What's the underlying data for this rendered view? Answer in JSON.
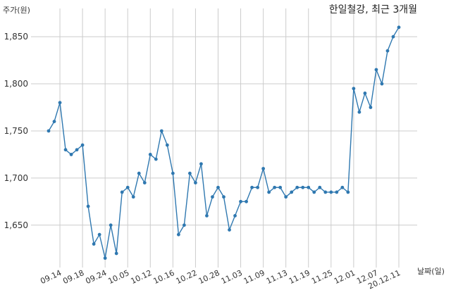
{
  "chart_data": {
    "type": "line",
    "title": "한일철강, 최근 3개월",
    "ylabel": "주가(원)",
    "xlabel": "날짜(일)",
    "ylim": [
      1605,
      1880
    ],
    "yticks": [
      1650,
      1700,
      1750,
      1800,
      1850
    ],
    "ytick_labels": [
      "1,650",
      "1,700",
      "1,750",
      "1,800",
      "1,850"
    ],
    "grid": true,
    "color": "#2f78b0",
    "x_tick_labels": [
      {
        "index": 2,
        "label": "09.14"
      },
      {
        "index": 6,
        "label": "09.18"
      },
      {
        "index": 10,
        "label": "09.24"
      },
      {
        "index": 14,
        "label": "10.05"
      },
      {
        "index": 18,
        "label": "10.12"
      },
      {
        "index": 22,
        "label": "10.16"
      },
      {
        "index": 26,
        "label": "10.22"
      },
      {
        "index": 30,
        "label": "10.28"
      },
      {
        "index": 34,
        "label": "11.03"
      },
      {
        "index": 38,
        "label": "11.09"
      },
      {
        "index": 42,
        "label": "11.13"
      },
      {
        "index": 46,
        "label": "11.19"
      },
      {
        "index": 50,
        "label": "11.25"
      },
      {
        "index": 54,
        "label": "12.01"
      },
      {
        "index": 58,
        "label": "12.07"
      },
      {
        "index": 62,
        "label": "20.12.11"
      }
    ],
    "values": [
      1750,
      1760,
      1780,
      1730,
      1725,
      1730,
      1735,
      1670,
      1630,
      1640,
      1615,
      1650,
      1620,
      1685,
      1690,
      1680,
      1705,
      1695,
      1725,
      1720,
      1750,
      1735,
      1705,
      1640,
      1650,
      1705,
      1695,
      1715,
      1660,
      1680,
      1690,
      1680,
      1645,
      1660,
      1675,
      1675,
      1690,
      1690,
      1710,
      1685,
      1690,
      1690,
      1680,
      1685,
      1690,
      1690,
      1690,
      1685,
      1690,
      1685,
      1685,
      1685,
      1690,
      1685,
      1795,
      1770,
      1790,
      1775,
      1815,
      1800,
      1835,
      1850,
      1860
    ]
  }
}
